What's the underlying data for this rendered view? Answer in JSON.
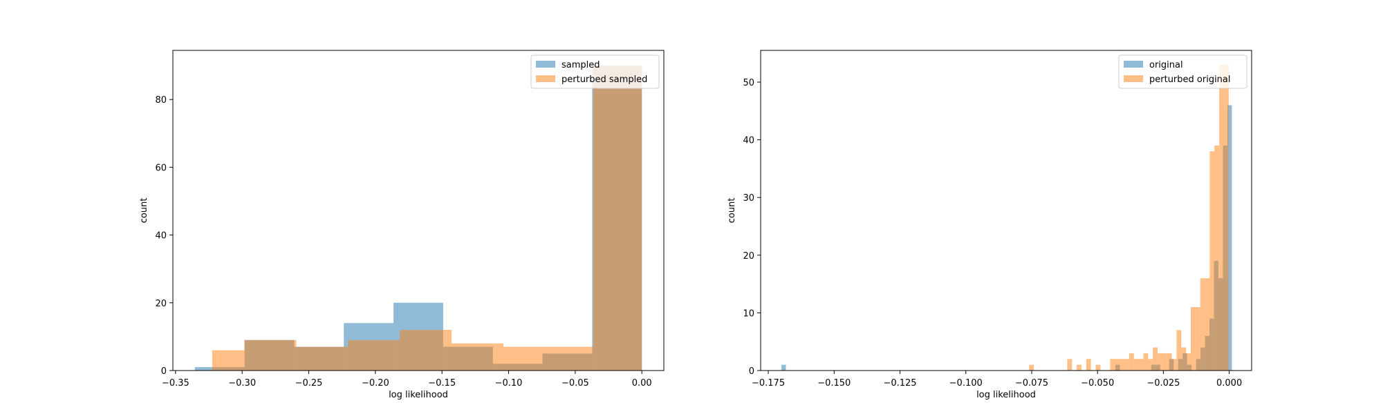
{
  "chart_data": [
    {
      "type": "histogram",
      "xlabel": "log likelihood",
      "ylabel": "count",
      "xlim": [
        -0.352,
        0.0165
      ],
      "ylim": [
        0,
        94.5
      ],
      "xticks": [
        -0.35,
        -0.3,
        -0.25,
        -0.2,
        -0.15,
        -0.1,
        -0.05,
        0.0
      ],
      "xtick_labels": [
        "−0.35",
        "−0.30",
        "−0.25",
        "−0.20",
        "−0.15",
        "−0.10",
        "−0.05",
        "0.00"
      ],
      "yticks": [
        0,
        20,
        40,
        60,
        80
      ],
      "ytick_labels": [
        "0",
        "20",
        "40",
        "60",
        "80"
      ],
      "legend_position": "top-right",
      "colors": {
        "series_0": "#1f77b4",
        "series_1": "#ff7f0e"
      },
      "alpha": 0.5,
      "series": [
        {
          "name": "sampled",
          "bin_edges": [
            -0.3355,
            -0.2982,
            -0.2609,
            -0.2237,
            -0.1864,
            -0.1491,
            -0.1118,
            -0.0746,
            -0.0373,
            0.0
          ],
          "values": [
            1,
            9,
            7,
            14,
            20,
            7,
            2,
            5,
            90
          ]
        },
        {
          "name": "perturbed sampled",
          "bin_edges": [
            -0.3225,
            -0.2983,
            -0.2594,
            -0.2206,
            -0.1817,
            -0.1428,
            -0.1039,
            -0.065,
            -0.0365,
            0.0
          ],
          "values": [
            6,
            9,
            7,
            9,
            12,
            8,
            7,
            7,
            90
          ]
        }
      ]
    },
    {
      "type": "histogram",
      "xlabel": "log likelihood",
      "ylabel": "count",
      "xlim": [
        -0.1779,
        0.0085
      ],
      "ylim": [
        0,
        55.5
      ],
      "xticks": [
        -0.175,
        -0.15,
        -0.125,
        -0.1,
        -0.075,
        -0.05,
        -0.025,
        0.0
      ],
      "xtick_labels": [
        "−0.175",
        "−0.150",
        "−0.125",
        "−0.100",
        "−0.075",
        "−0.050",
        "−0.025",
        "0.000"
      ],
      "yticks": [
        0,
        10,
        20,
        30,
        40,
        50
      ],
      "ytick_labels": [
        "0",
        "10",
        "20",
        "30",
        "40",
        "50"
      ],
      "legend_position": "top-right",
      "colors": {
        "series_0": "#1f77b4",
        "series_1": "#ff7f0e"
      },
      "alpha": 0.5,
      "series": [
        {
          "name": "original",
          "bin_width": 0.0017,
          "bins": [
            [
              -0.17,
              1
            ],
            [
              -0.0432,
              1
            ],
            [
              -0.0296,
              1
            ],
            [
              -0.0279,
              1
            ],
            [
              -0.0228,
              2
            ],
            [
              -0.0194,
              2
            ],
            [
              -0.0177,
              3
            ],
            [
              -0.016,
              1
            ],
            [
              -0.0126,
              2
            ],
            [
              -0.0109,
              4
            ],
            [
              -0.0092,
              6
            ],
            [
              -0.0075,
              9
            ],
            [
              -0.0058,
              19
            ],
            [
              -0.0041,
              16
            ],
            [
              -0.0024,
              39
            ],
            [
              -0.0007,
              46
            ]
          ]
        },
        {
          "name": "perturbed original",
          "bin_width": 0.0018,
          "bins": [
            [
              -0.076,
              1
            ],
            [
              -0.0615,
              2
            ],
            [
              -0.0579,
              1
            ],
            [
              -0.0543,
              2
            ],
            [
              -0.0507,
              1
            ],
            [
              -0.0452,
              2
            ],
            [
              -0.0434,
              2
            ],
            [
              -0.0416,
              2
            ],
            [
              -0.0398,
              2
            ],
            [
              -0.038,
              3
            ],
            [
              -0.0362,
              2
            ],
            [
              -0.0344,
              2
            ],
            [
              -0.0326,
              3
            ],
            [
              -0.0308,
              2
            ],
            [
              -0.029,
              4
            ],
            [
              -0.0272,
              3
            ],
            [
              -0.0254,
              3
            ],
            [
              -0.0236,
              3
            ],
            [
              -0.0218,
              2
            ],
            [
              -0.02,
              7
            ],
            [
              -0.0182,
              4
            ],
            [
              -0.0164,
              3
            ],
            [
              -0.0146,
              11
            ],
            [
              -0.0128,
              11
            ],
            [
              -0.011,
              16
            ],
            [
              -0.0092,
              16
            ],
            [
              -0.0074,
              38
            ],
            [
              -0.0056,
              39
            ],
            [
              -0.0038,
              53
            ],
            [
              -0.002,
              53
            ]
          ]
        }
      ]
    }
  ]
}
